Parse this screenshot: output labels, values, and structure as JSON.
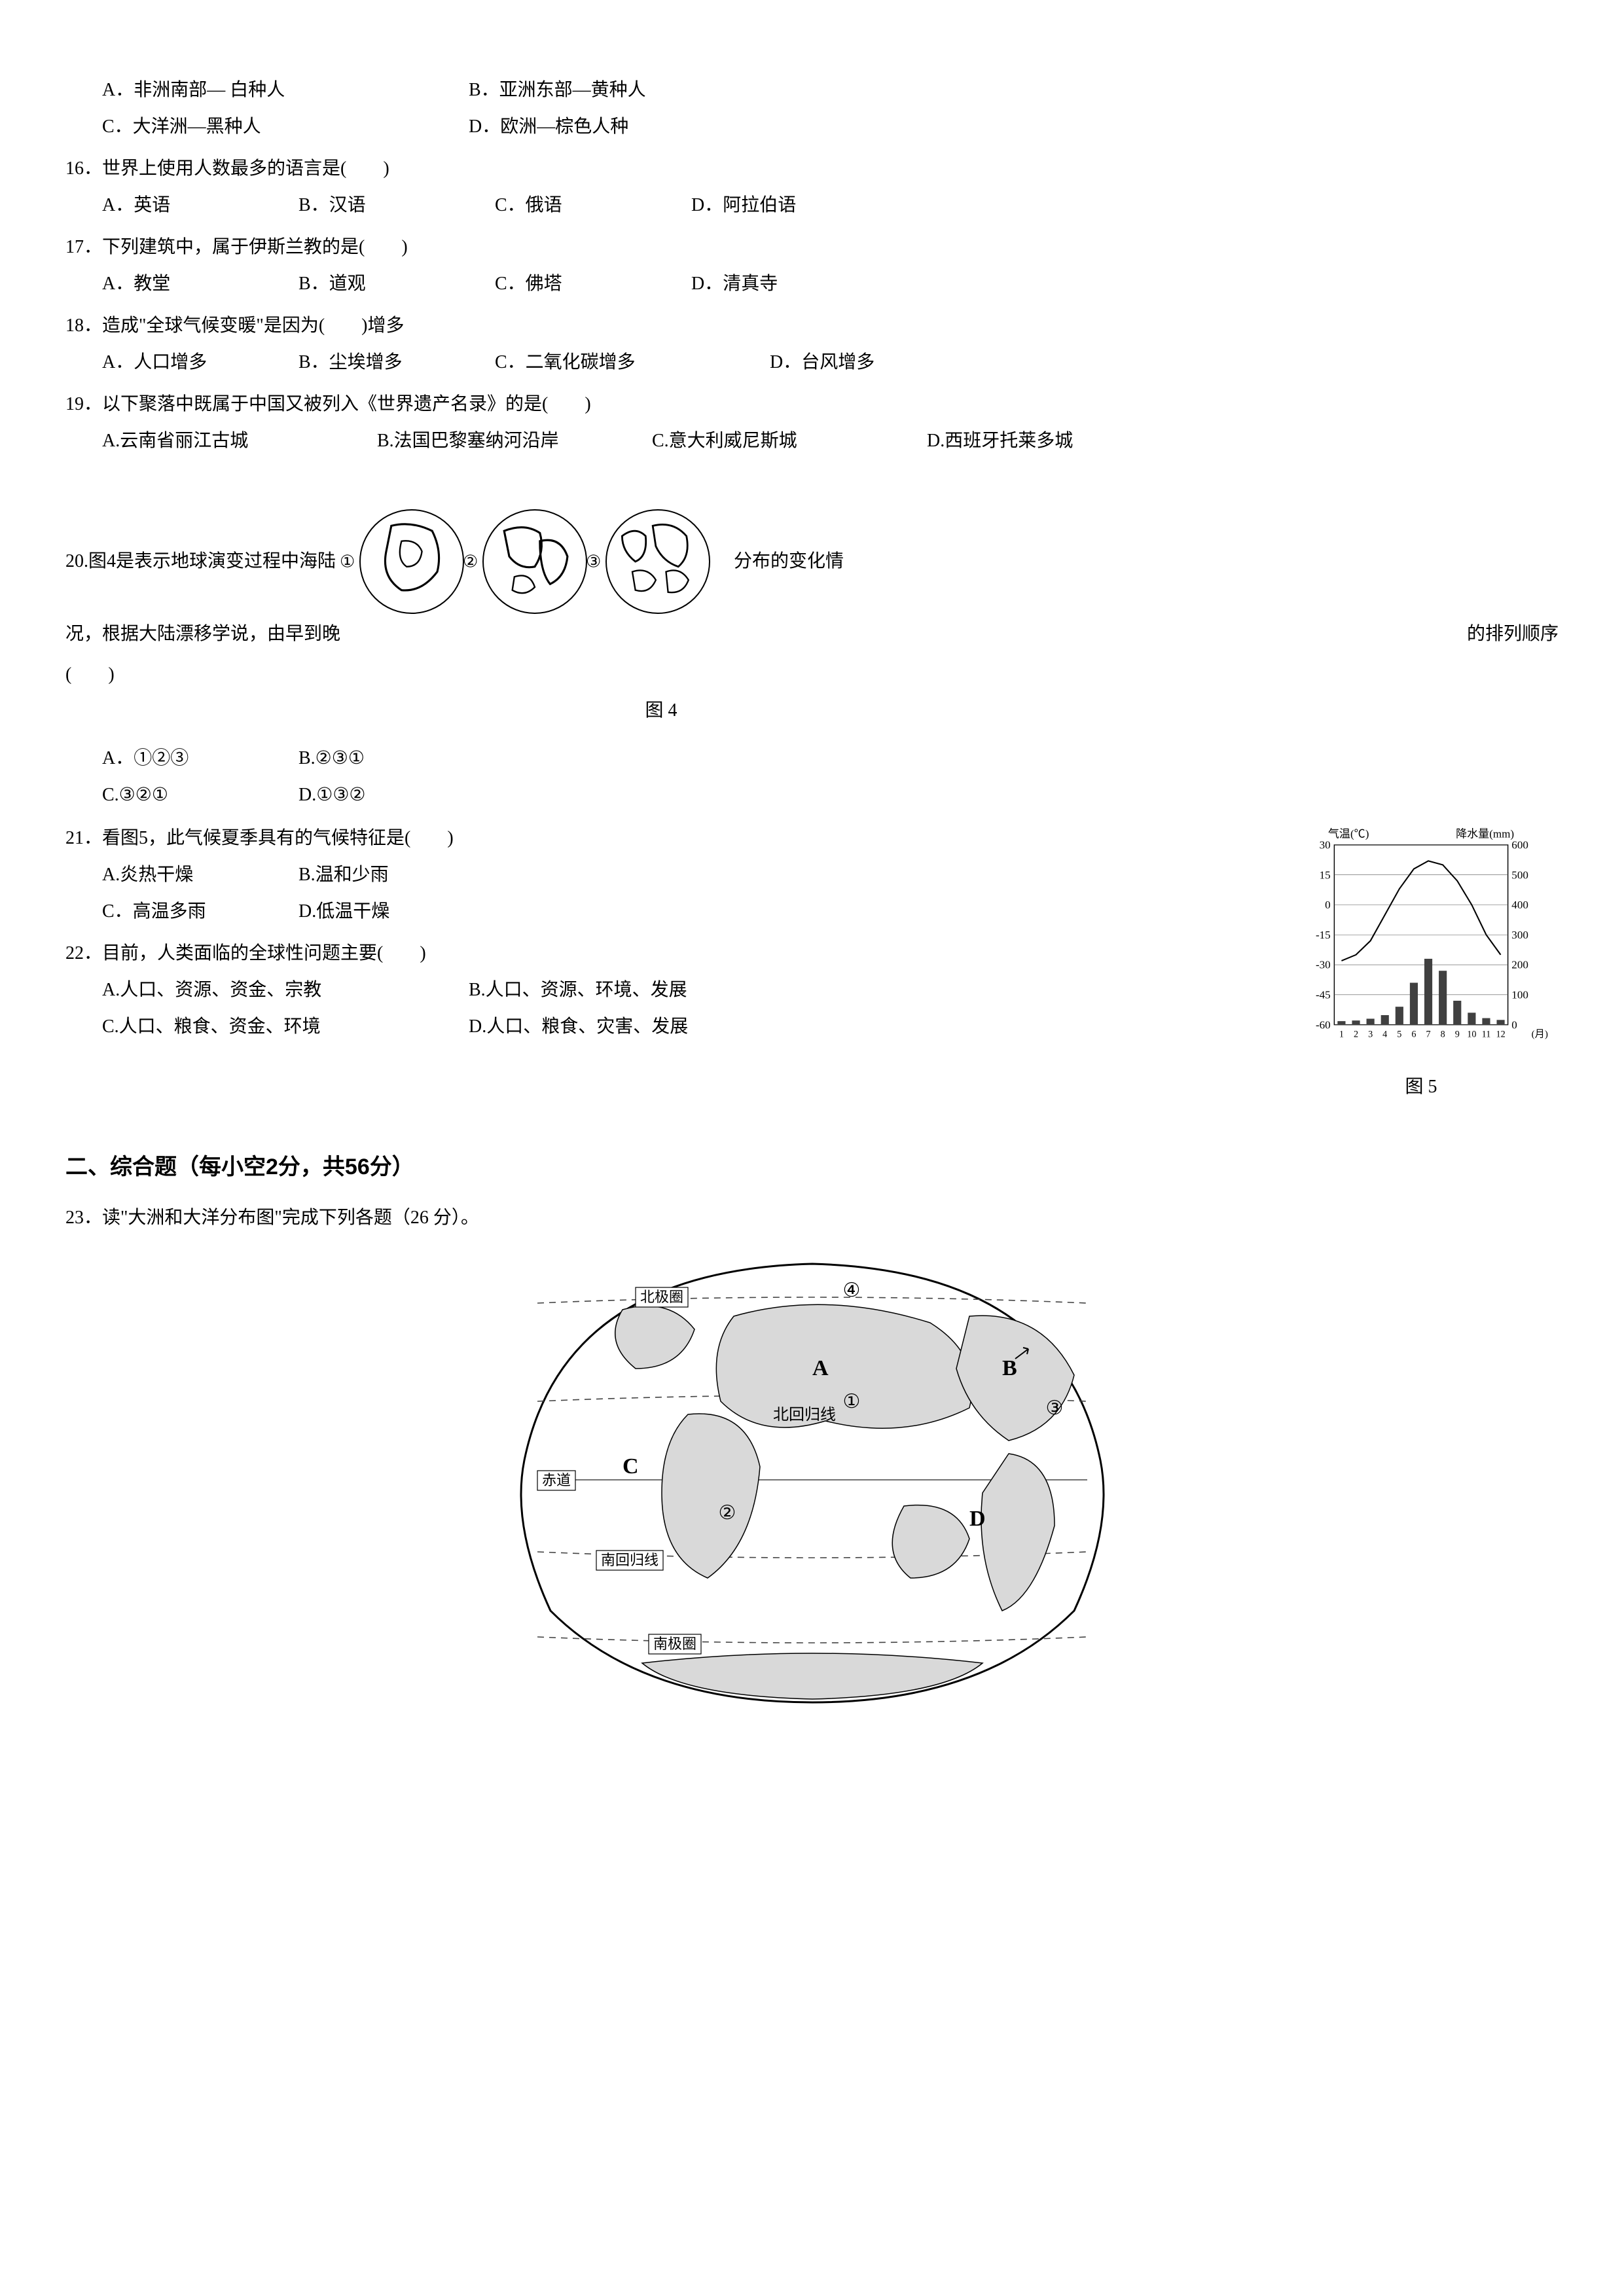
{
  "q15_options": {
    "A": "A．非洲南部— 白种人",
    "B": "B．亚洲东部—黄种人",
    "C": "C．大洋洲—黑种人",
    "D": "D．欧洲—棕色人种"
  },
  "q16": {
    "text": "16．世界上使用人数最多的语言是(　　)",
    "A": "A．英语",
    "B": "B．汉语",
    "C": "C．俄语",
    "D": "D．阿拉伯语"
  },
  "q17": {
    "text": "17．下列建筑中，属于伊斯兰教的是(　　)",
    "A": "A．教堂",
    "B": "B．道观",
    "C": "C．佛塔",
    "D": "D．清真寺"
  },
  "q18": {
    "text": "18．造成\"全球气候变暖\"是因为(　　)增多",
    "A": "A．人口增多",
    "B": "B．尘埃增多",
    "C": "C．二氧化碳增多",
    "D": "D．台风增多"
  },
  "q19": {
    "text": "19．以下聚落中既属于中国又被列入《世界遗产名录》的是(　　)",
    "A": "A.云南省丽江古城",
    "B": "B.法国巴黎塞纳河沿岸",
    "C": "C.意大利威尼斯城",
    "D": "D.西班牙托莱多城"
  },
  "q20": {
    "text_1": "20.图4是表示地球演变过程中海陆",
    "text_1b": "分布的变化情",
    "text_2": "况，根据大陆漂移学说，由早到晚",
    "text_2b": "的排列顺序",
    "text_3": "(　　)",
    "A": "A．①②③",
    "B": "B.②③①",
    "C": "C.③②①",
    "D": "D.①③②",
    "fig_caption": "图 4",
    "labels": [
      "①",
      "②",
      "③"
    ]
  },
  "q21": {
    "text": "21．看图5，此气候夏季具有的气候特征是(　　)",
    "A": "A.炎热干燥",
    "B": "B.温和少雨",
    "C": "C．高温多雨",
    "D": "D.低温干燥",
    "fig_caption": "图 5",
    "chart": {
      "temp_label": "气温(℃)",
      "precip_label": "降水量(mm)",
      "x_label": "(月)",
      "temp_ticks": [
        30,
        15,
        0,
        -15,
        -30,
        -45,
        -60
      ],
      "precip_ticks": [
        600,
        500,
        400,
        300,
        200,
        100,
        0
      ],
      "months": [
        "1",
        "2",
        "3",
        "4",
        "5",
        "6",
        "7",
        "8",
        "9",
        "10",
        "11",
        "12"
      ],
      "temp_values": [
        -28,
        -25,
        -18,
        -5,
        8,
        18,
        22,
        20,
        12,
        0,
        -15,
        -25
      ],
      "precip_values": [
        12,
        14,
        20,
        32,
        60,
        140,
        220,
        180,
        80,
        40,
        22,
        16
      ],
      "line_color": "#000000",
      "bar_color": "#404040",
      "axis_color": "#000000",
      "grid_color": "#555555",
      "bg": "#ffffff"
    }
  },
  "q22": {
    "text": "22．目前，人类面临的全球性问题主要(　　)",
    "A": "A.人口、资源、资金、宗教",
    "B": "B.人口、资源、环境、发展",
    "C": "C.人口、粮食、资金、环境",
    "D": "D.人口、粮食、灾害、发展"
  },
  "section2": {
    "title": "二、综合题（每小空2分，共56分）",
    "q23": "23．读\"大洲和大洋分布图\"完成下列各题（26 分）。",
    "map": {
      "labels": {
        "arctic": "北极圈",
        "tropic_n": "北回归线",
        "equator": "赤道",
        "tropic_s": "南回归线",
        "antarctic": "南极圈"
      },
      "markers": {
        "A": "A",
        "B": "B",
        "C": "C",
        "D": "D",
        "n1": "①",
        "n2": "②",
        "n3": "③",
        "n4": "④"
      },
      "land_color": "#d9d9d9",
      "line_color": "#000000",
      "dash_color": "#444444",
      "bg": "#ffffff"
    }
  }
}
